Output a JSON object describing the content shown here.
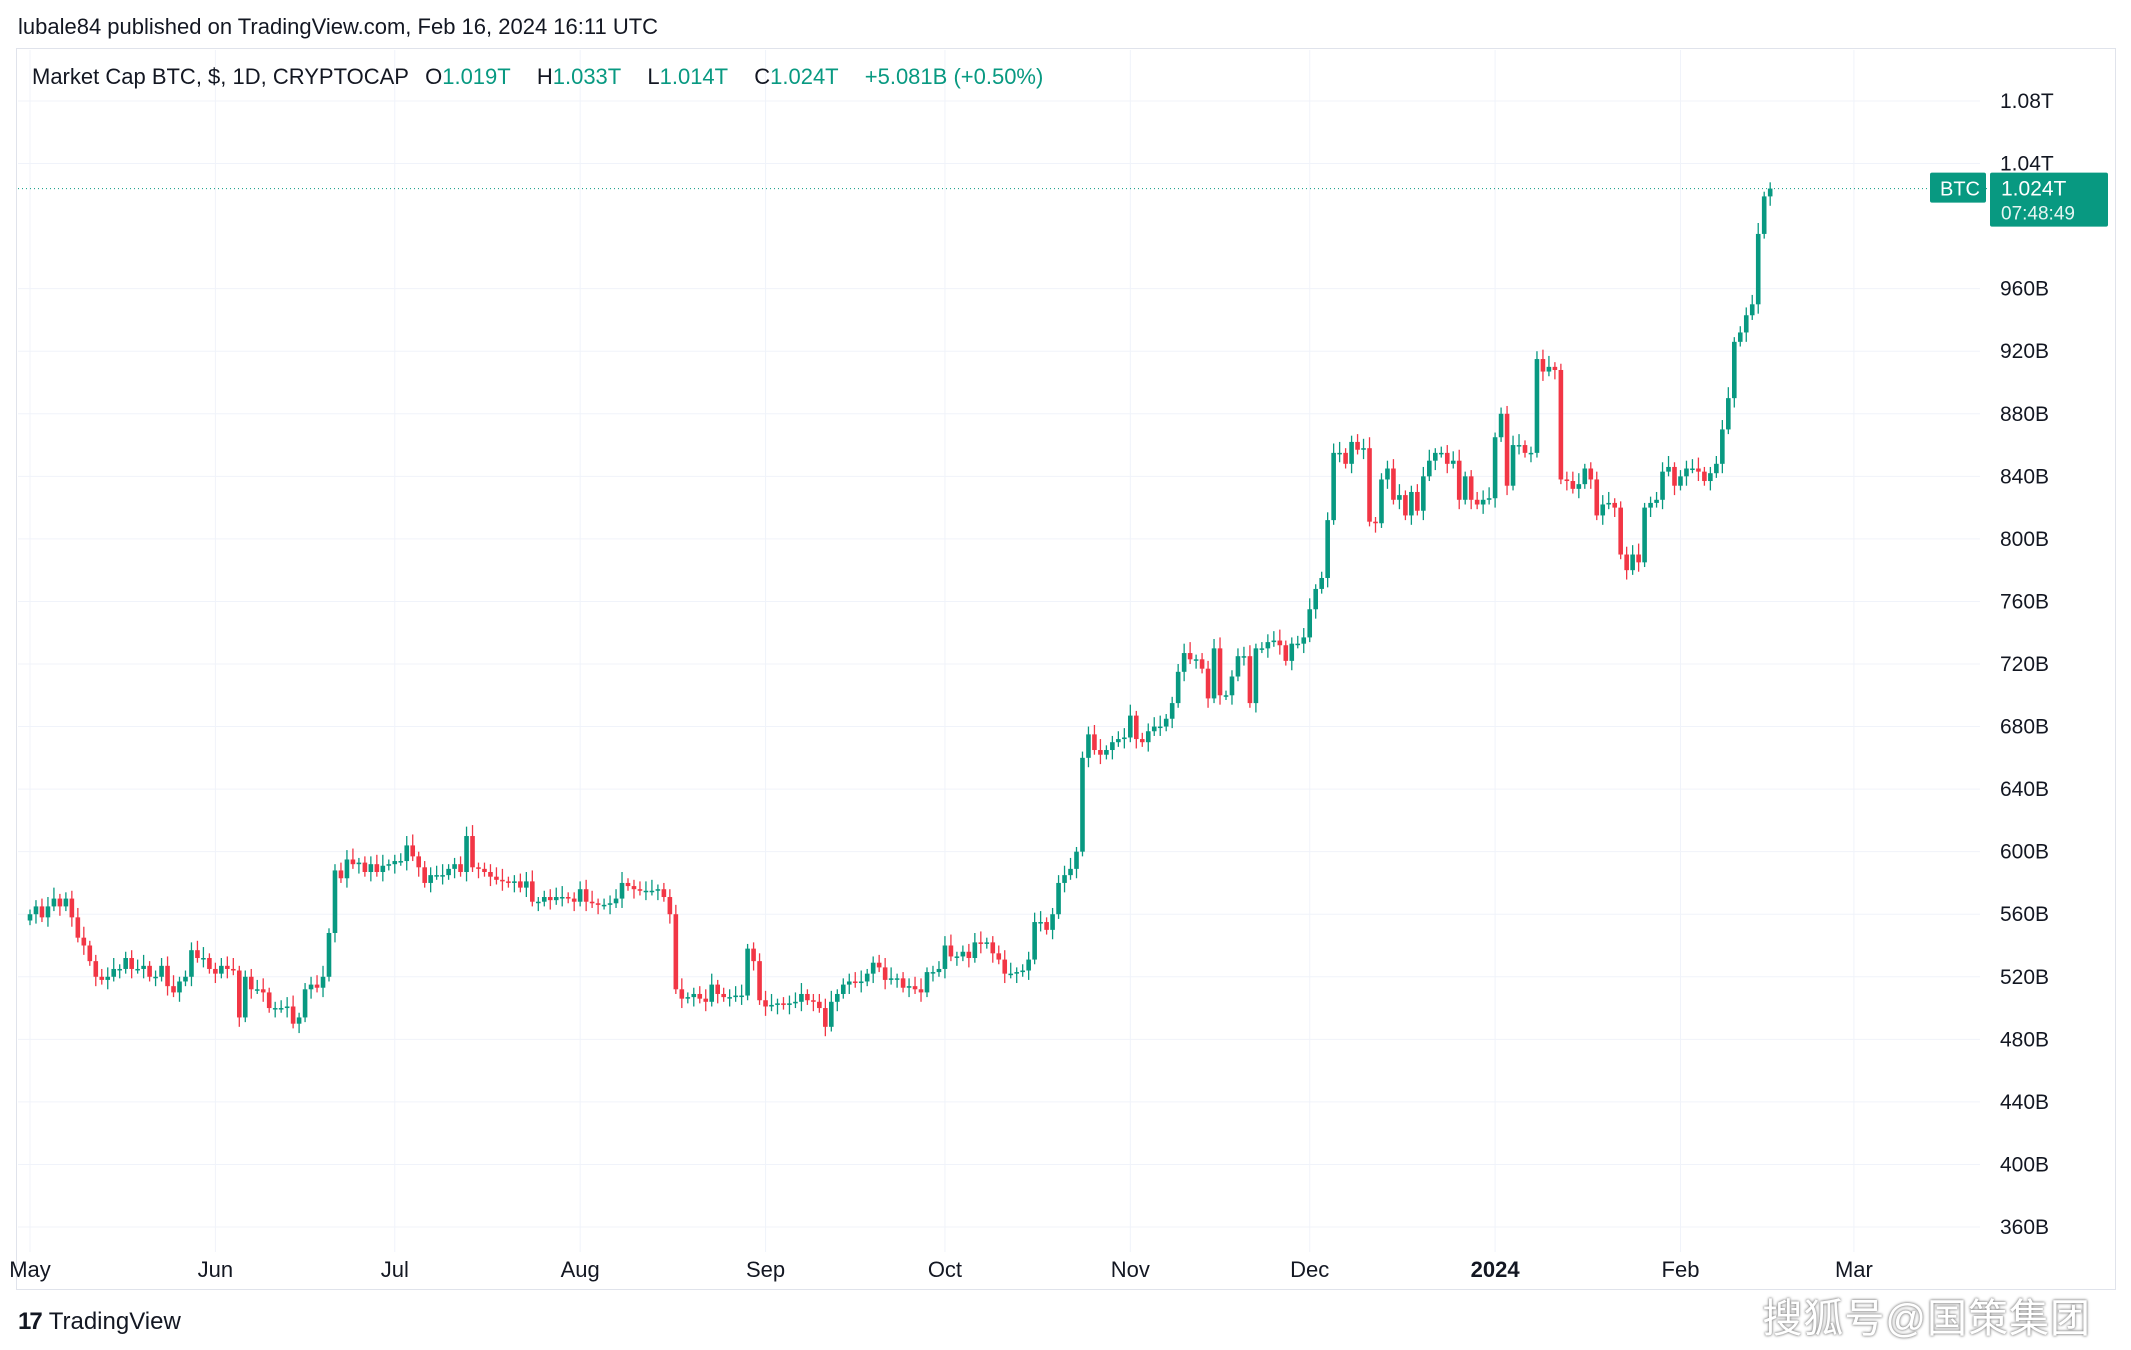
{
  "header": {
    "published": "lubale84 published on TradingView.com, Feb 16, 2024 16:11 UTC"
  },
  "legend": {
    "symbol": "Market Cap BTC, $, 1D, CRYPTOCAP",
    "open_label": "O",
    "open": "1.019T",
    "high_label": "H",
    "high": "1.033T",
    "low_label": "L",
    "low": "1.014T",
    "close_label": "C",
    "close": "1.024T",
    "change": "+5.081B (+0.50%)"
  },
  "price_tag": {
    "name": "BTC",
    "value": "1.024T",
    "countdown": "07:48:49"
  },
  "footer": {
    "brand": "TradingView",
    "brand_mark": "17"
  },
  "watermark": "搜狐号@国策集团",
  "colors": {
    "up": "#089981",
    "down": "#f23645",
    "grid": "#f0f3fa",
    "axis_text": "#131722"
  },
  "chart_data": {
    "type": "candlestick",
    "title": "Market Cap BTC, $, 1D, CRYPTOCAP",
    "x_ticks": [
      {
        "label": "May",
        "date": "2023-05-01",
        "bold": false
      },
      {
        "label": "Jun",
        "date": "2023-06-01",
        "bold": false
      },
      {
        "label": "Jul",
        "date": "2023-07-01",
        "bold": false
      },
      {
        "label": "Aug",
        "date": "2023-08-01",
        "bold": false
      },
      {
        "label": "Sep",
        "date": "2023-09-01",
        "bold": false
      },
      {
        "label": "Oct",
        "date": "2023-10-01",
        "bold": false
      },
      {
        "label": "Nov",
        "date": "2023-11-01",
        "bold": false
      },
      {
        "label": "Dec",
        "date": "2023-12-01",
        "bold": false
      },
      {
        "label": "2024",
        "date": "2024-01-01",
        "bold": true
      },
      {
        "label": "Feb",
        "date": "2024-02-01",
        "bold": false
      },
      {
        "label": "Mar",
        "date": "2024-03-01",
        "bold": false
      }
    ],
    "y_ticks": [
      {
        "label": "1.08T",
        "value": 1080
      },
      {
        "label": "1.04T",
        "value": 1040
      },
      {
        "label": "960B",
        "value": 960
      },
      {
        "label": "920B",
        "value": 920
      },
      {
        "label": "880B",
        "value": 880
      },
      {
        "label": "840B",
        "value": 840
      },
      {
        "label": "800B",
        "value": 800
      },
      {
        "label": "760B",
        "value": 760
      },
      {
        "label": "720B",
        "value": 720
      },
      {
        "label": "680B",
        "value": 680
      },
      {
        "label": "640B",
        "value": 640
      },
      {
        "label": "600B",
        "value": 600
      },
      {
        "label": "560B",
        "value": 560
      },
      {
        "label": "520B",
        "value": 520
      },
      {
        "label": "480B",
        "value": 480
      },
      {
        "label": "440B",
        "value": 440
      },
      {
        "label": "400B",
        "value": 400
      },
      {
        "label": "360B",
        "value": 360
      }
    ],
    "y_unit": "billions USD",
    "last_price": 1024,
    "grid": true,
    "close_series": [
      [
        "2023-05-01",
        560
      ],
      [
        "2023-05-02",
        565
      ],
      [
        "2023-05-03",
        558
      ],
      [
        "2023-05-04",
        565
      ],
      [
        "2023-05-05",
        570
      ],
      [
        "2023-05-06",
        565
      ],
      [
        "2023-05-07",
        570
      ],
      [
        "2023-05-08",
        558
      ],
      [
        "2023-05-09",
        545
      ],
      [
        "2023-05-10",
        540
      ],
      [
        "2023-05-11",
        530
      ],
      [
        "2023-05-12",
        520
      ],
      [
        "2023-05-13",
        518
      ],
      [
        "2023-05-14",
        520
      ],
      [
        "2023-05-15",
        525
      ],
      [
        "2023-05-16",
        525
      ],
      [
        "2023-05-17",
        532
      ],
      [
        "2023-05-18",
        525
      ],
      [
        "2023-05-19",
        525
      ],
      [
        "2023-05-20",
        527
      ],
      [
        "2023-05-21",
        520
      ],
      [
        "2023-05-22",
        520
      ],
      [
        "2023-05-23",
        527
      ],
      [
        "2023-05-24",
        514
      ],
      [
        "2023-05-25",
        510
      ],
      [
        "2023-05-26",
        517
      ],
      [
        "2023-05-27",
        520
      ],
      [
        "2023-05-28",
        537
      ],
      [
        "2023-05-29",
        532
      ],
      [
        "2023-05-30",
        532
      ],
      [
        "2023-05-31",
        525
      ],
      [
        "2023-06-01",
        522
      ],
      [
        "2023-06-02",
        527
      ],
      [
        "2023-06-03",
        525
      ],
      [
        "2023-06-04",
        524
      ],
      [
        "2023-06-05",
        494
      ],
      [
        "2023-06-06",
        520
      ],
      [
        "2023-06-07",
        512
      ],
      [
        "2023-06-08",
        512
      ],
      [
        "2023-06-09",
        510
      ],
      [
        "2023-06-10",
        500
      ],
      [
        "2023-06-11",
        500
      ],
      [
        "2023-06-12",
        500
      ],
      [
        "2023-06-13",
        501
      ],
      [
        "2023-06-14",
        490
      ],
      [
        "2023-06-15",
        494
      ],
      [
        "2023-06-16",
        512
      ],
      [
        "2023-06-17",
        515
      ],
      [
        "2023-06-18",
        513
      ],
      [
        "2023-06-19",
        520
      ],
      [
        "2023-06-20",
        548
      ],
      [
        "2023-06-21",
        588
      ],
      [
        "2023-06-22",
        583
      ],
      [
        "2023-06-23",
        595
      ],
      [
        "2023-06-24",
        592
      ],
      [
        "2023-06-25",
        593
      ],
      [
        "2023-06-26",
        587
      ],
      [
        "2023-06-27",
        592
      ],
      [
        "2023-06-28",
        587
      ],
      [
        "2023-06-29",
        591
      ],
      [
        "2023-06-30",
        592
      ],
      [
        "2023-07-01",
        594
      ],
      [
        "2023-07-02",
        594
      ],
      [
        "2023-07-03",
        604
      ],
      [
        "2023-07-04",
        597
      ],
      [
        "2023-07-05",
        590
      ],
      [
        "2023-07-06",
        580
      ],
      [
        "2023-07-07",
        585
      ],
      [
        "2023-07-08",
        585
      ],
      [
        "2023-07-09",
        585
      ],
      [
        "2023-07-10",
        589
      ],
      [
        "2023-07-11",
        592
      ],
      [
        "2023-07-12",
        587
      ],
      [
        "2023-07-13",
        610
      ],
      [
        "2023-07-14",
        590
      ],
      [
        "2023-07-15",
        589
      ],
      [
        "2023-07-16",
        587
      ],
      [
        "2023-07-17",
        584
      ],
      [
        "2023-07-18",
        582
      ],
      [
        "2023-07-19",
        581
      ],
      [
        "2023-07-20",
        580
      ],
      [
        "2023-07-21",
        581
      ],
      [
        "2023-07-22",
        577
      ],
      [
        "2023-07-23",
        581
      ],
      [
        "2023-07-24",
        568
      ],
      [
        "2023-07-25",
        568
      ],
      [
        "2023-07-26",
        571
      ],
      [
        "2023-07-27",
        569
      ],
      [
        "2023-07-28",
        571
      ],
      [
        "2023-07-29",
        571
      ],
      [
        "2023-07-30",
        570
      ],
      [
        "2023-07-31",
        568
      ],
      [
        "2023-08-01",
        576
      ],
      [
        "2023-08-02",
        568
      ],
      [
        "2023-08-03",
        567
      ],
      [
        "2023-08-04",
        566
      ],
      [
        "2023-08-05",
        566
      ],
      [
        "2023-08-06",
        567
      ],
      [
        "2023-08-07",
        570
      ],
      [
        "2023-08-08",
        580
      ],
      [
        "2023-08-09",
        578
      ],
      [
        "2023-08-10",
        576
      ],
      [
        "2023-08-11",
        575
      ],
      [
        "2023-08-12",
        575
      ],
      [
        "2023-08-13",
        575
      ],
      [
        "2023-08-14",
        576
      ],
      [
        "2023-08-15",
        571
      ],
      [
        "2023-08-16",
        560
      ],
      [
        "2023-08-17",
        512
      ],
      [
        "2023-08-18",
        506
      ],
      [
        "2023-08-19",
        507
      ],
      [
        "2023-08-20",
        509
      ],
      [
        "2023-08-21",
        506
      ],
      [
        "2023-08-22",
        504
      ],
      [
        "2023-08-23",
        515
      ],
      [
        "2023-08-24",
        509
      ],
      [
        "2023-08-25",
        507
      ],
      [
        "2023-08-26",
        507
      ],
      [
        "2023-08-27",
        508
      ],
      [
        "2023-08-28",
        508
      ],
      [
        "2023-08-29",
        538
      ],
      [
        "2023-08-30",
        530
      ],
      [
        "2023-08-31",
        505
      ],
      [
        "2023-09-01",
        501
      ],
      [
        "2023-09-02",
        502
      ],
      [
        "2023-09-03",
        503
      ],
      [
        "2023-09-04",
        502
      ],
      [
        "2023-09-05",
        503
      ],
      [
        "2023-09-06",
        504
      ],
      [
        "2023-09-07",
        509
      ],
      [
        "2023-09-08",
        505
      ],
      [
        "2023-09-09",
        504
      ],
      [
        "2023-09-10",
        500
      ],
      [
        "2023-09-11",
        488
      ],
      [
        "2023-09-12",
        504
      ],
      [
        "2023-09-13",
        509
      ],
      [
        "2023-09-14",
        515
      ],
      [
        "2023-09-15",
        517
      ],
      [
        "2023-09-16",
        516
      ],
      [
        "2023-09-17",
        517
      ],
      [
        "2023-09-18",
        522
      ],
      [
        "2023-09-19",
        529
      ],
      [
        "2023-09-20",
        526
      ],
      [
        "2023-09-21",
        518
      ],
      [
        "2023-09-22",
        519
      ],
      [
        "2023-09-23",
        519
      ],
      [
        "2023-09-24",
        513
      ],
      [
        "2023-09-25",
        514
      ],
      [
        "2023-09-26",
        512
      ],
      [
        "2023-09-27",
        510
      ],
      [
        "2023-09-28",
        523
      ],
      [
        "2023-09-29",
        523
      ],
      [
        "2023-09-30",
        525
      ],
      [
        "2023-10-01",
        540
      ],
      [
        "2023-10-02",
        533
      ],
      [
        "2023-10-03",
        533
      ],
      [
        "2023-10-04",
        536
      ],
      [
        "2023-10-05",
        532
      ],
      [
        "2023-10-06",
        542
      ],
      [
        "2023-10-07",
        541
      ],
      [
        "2023-10-08",
        542
      ],
      [
        "2023-10-09",
        535
      ],
      [
        "2023-10-10",
        531
      ],
      [
        "2023-10-11",
        522
      ],
      [
        "2023-10-12",
        522
      ],
      [
        "2023-10-13",
        523
      ],
      [
        "2023-10-14",
        524
      ],
      [
        "2023-10-15",
        531
      ],
      [
        "2023-10-16",
        555
      ],
      [
        "2023-10-17",
        555
      ],
      [
        "2023-10-18",
        550
      ],
      [
        "2023-10-19",
        560
      ],
      [
        "2023-10-20",
        580
      ],
      [
        "2023-10-21",
        585
      ],
      [
        "2023-10-22",
        589
      ],
      [
        "2023-10-23",
        600
      ],
      [
        "2023-10-24",
        660
      ],
      [
        "2023-10-25",
        675
      ],
      [
        "2023-10-26",
        665
      ],
      [
        "2023-10-27",
        662
      ],
      [
        "2023-10-28",
        665
      ],
      [
        "2023-10-29",
        670
      ],
      [
        "2023-10-30",
        672
      ],
      [
        "2023-10-31",
        673
      ],
      [
        "2023-11-01",
        687
      ],
      [
        "2023-11-02",
        672
      ],
      [
        "2023-11-03",
        670
      ],
      [
        "2023-11-04",
        677
      ],
      [
        "2023-11-05",
        680
      ],
      [
        "2023-11-06",
        680
      ],
      [
        "2023-11-07",
        685
      ],
      [
        "2023-11-08",
        695
      ],
      [
        "2023-11-09",
        715
      ],
      [
        "2023-11-10",
        727
      ],
      [
        "2023-11-11",
        723
      ],
      [
        "2023-11-12",
        723
      ],
      [
        "2023-11-13",
        717
      ],
      [
        "2023-11-14",
        698
      ],
      [
        "2023-11-15",
        730
      ],
      [
        "2023-11-16",
        700
      ],
      [
        "2023-11-17",
        700
      ],
      [
        "2023-11-18",
        712
      ],
      [
        "2023-11-19",
        725
      ],
      [
        "2023-11-20",
        725
      ],
      [
        "2023-11-21",
        695
      ],
      [
        "2023-11-22",
        730
      ],
      [
        "2023-11-23",
        730
      ],
      [
        "2023-11-24",
        734
      ],
      [
        "2023-11-25",
        735
      ],
      [
        "2023-11-26",
        732
      ],
      [
        "2023-11-27",
        722
      ],
      [
        "2023-11-28",
        733
      ],
      [
        "2023-11-29",
        733
      ],
      [
        "2023-11-30",
        737
      ],
      [
        "2023-12-01",
        755
      ],
      [
        "2023-12-02",
        768
      ],
      [
        "2023-12-03",
        775
      ],
      [
        "2023-12-04",
        812
      ],
      [
        "2023-12-05",
        855
      ],
      [
        "2023-12-06",
        855
      ],
      [
        "2023-12-07",
        848
      ],
      [
        "2023-12-08",
        862
      ],
      [
        "2023-12-09",
        857
      ],
      [
        "2023-12-10",
        858
      ],
      [
        "2023-12-11",
        811
      ],
      [
        "2023-12-12",
        810
      ],
      [
        "2023-12-13",
        838
      ],
      [
        "2023-12-14",
        845
      ],
      [
        "2023-12-15",
        825
      ],
      [
        "2023-12-16",
        828
      ],
      [
        "2023-12-17",
        815
      ],
      [
        "2023-12-18",
        830
      ],
      [
        "2023-12-19",
        818
      ],
      [
        "2023-12-20",
        840
      ],
      [
        "2023-12-21",
        850
      ],
      [
        "2023-12-22",
        855
      ],
      [
        "2023-12-23",
        855
      ],
      [
        "2023-12-24",
        848
      ],
      [
        "2023-12-25",
        850
      ],
      [
        "2023-12-26",
        825
      ],
      [
        "2023-12-27",
        840
      ],
      [
        "2023-12-28",
        825
      ],
      [
        "2023-12-29",
        822
      ],
      [
        "2023-12-30",
        825
      ],
      [
        "2023-12-31",
        826
      ],
      [
        "2024-01-01",
        865
      ],
      [
        "2024-01-02",
        880
      ],
      [
        "2024-01-03",
        834
      ],
      [
        "2024-01-04",
        860
      ],
      [
        "2024-01-05",
        860
      ],
      [
        "2024-01-06",
        855
      ],
      [
        "2024-01-07",
        855
      ],
      [
        "2024-01-08",
        915
      ],
      [
        "2024-01-09",
        907
      ],
      [
        "2024-01-10",
        910
      ],
      [
        "2024-01-11",
        908
      ],
      [
        "2024-01-12",
        838
      ],
      [
        "2024-01-13",
        837
      ],
      [
        "2024-01-14",
        832
      ],
      [
        "2024-01-15",
        835
      ],
      [
        "2024-01-16",
        845
      ],
      [
        "2024-01-17",
        838
      ],
      [
        "2024-01-18",
        815
      ],
      [
        "2024-01-19",
        822
      ],
      [
        "2024-01-20",
        823
      ],
      [
        "2024-01-21",
        820
      ],
      [
        "2024-01-22",
        790
      ],
      [
        "2024-01-23",
        780
      ],
      [
        "2024-01-24",
        790
      ],
      [
        "2024-01-25",
        785
      ],
      [
        "2024-01-26",
        820
      ],
      [
        "2024-01-27",
        823
      ],
      [
        "2024-01-28",
        825
      ],
      [
        "2024-01-29",
        843
      ],
      [
        "2024-01-30",
        846
      ],
      [
        "2024-01-31",
        834
      ],
      [
        "2024-02-01",
        840
      ],
      [
        "2024-02-02",
        845
      ],
      [
        "2024-02-03",
        845
      ],
      [
        "2024-02-04",
        843
      ],
      [
        "2024-02-05",
        837
      ],
      [
        "2024-02-06",
        842
      ],
      [
        "2024-02-07",
        848
      ],
      [
        "2024-02-08",
        870
      ],
      [
        "2024-02-09",
        890
      ],
      [
        "2024-02-10",
        926
      ],
      [
        "2024-02-11",
        932
      ],
      [
        "2024-02-12",
        943
      ],
      [
        "2024-02-13",
        950
      ],
      [
        "2024-02-14",
        995
      ],
      [
        "2024-02-15",
        1019
      ],
      [
        "2024-02-16",
        1024
      ]
    ]
  }
}
